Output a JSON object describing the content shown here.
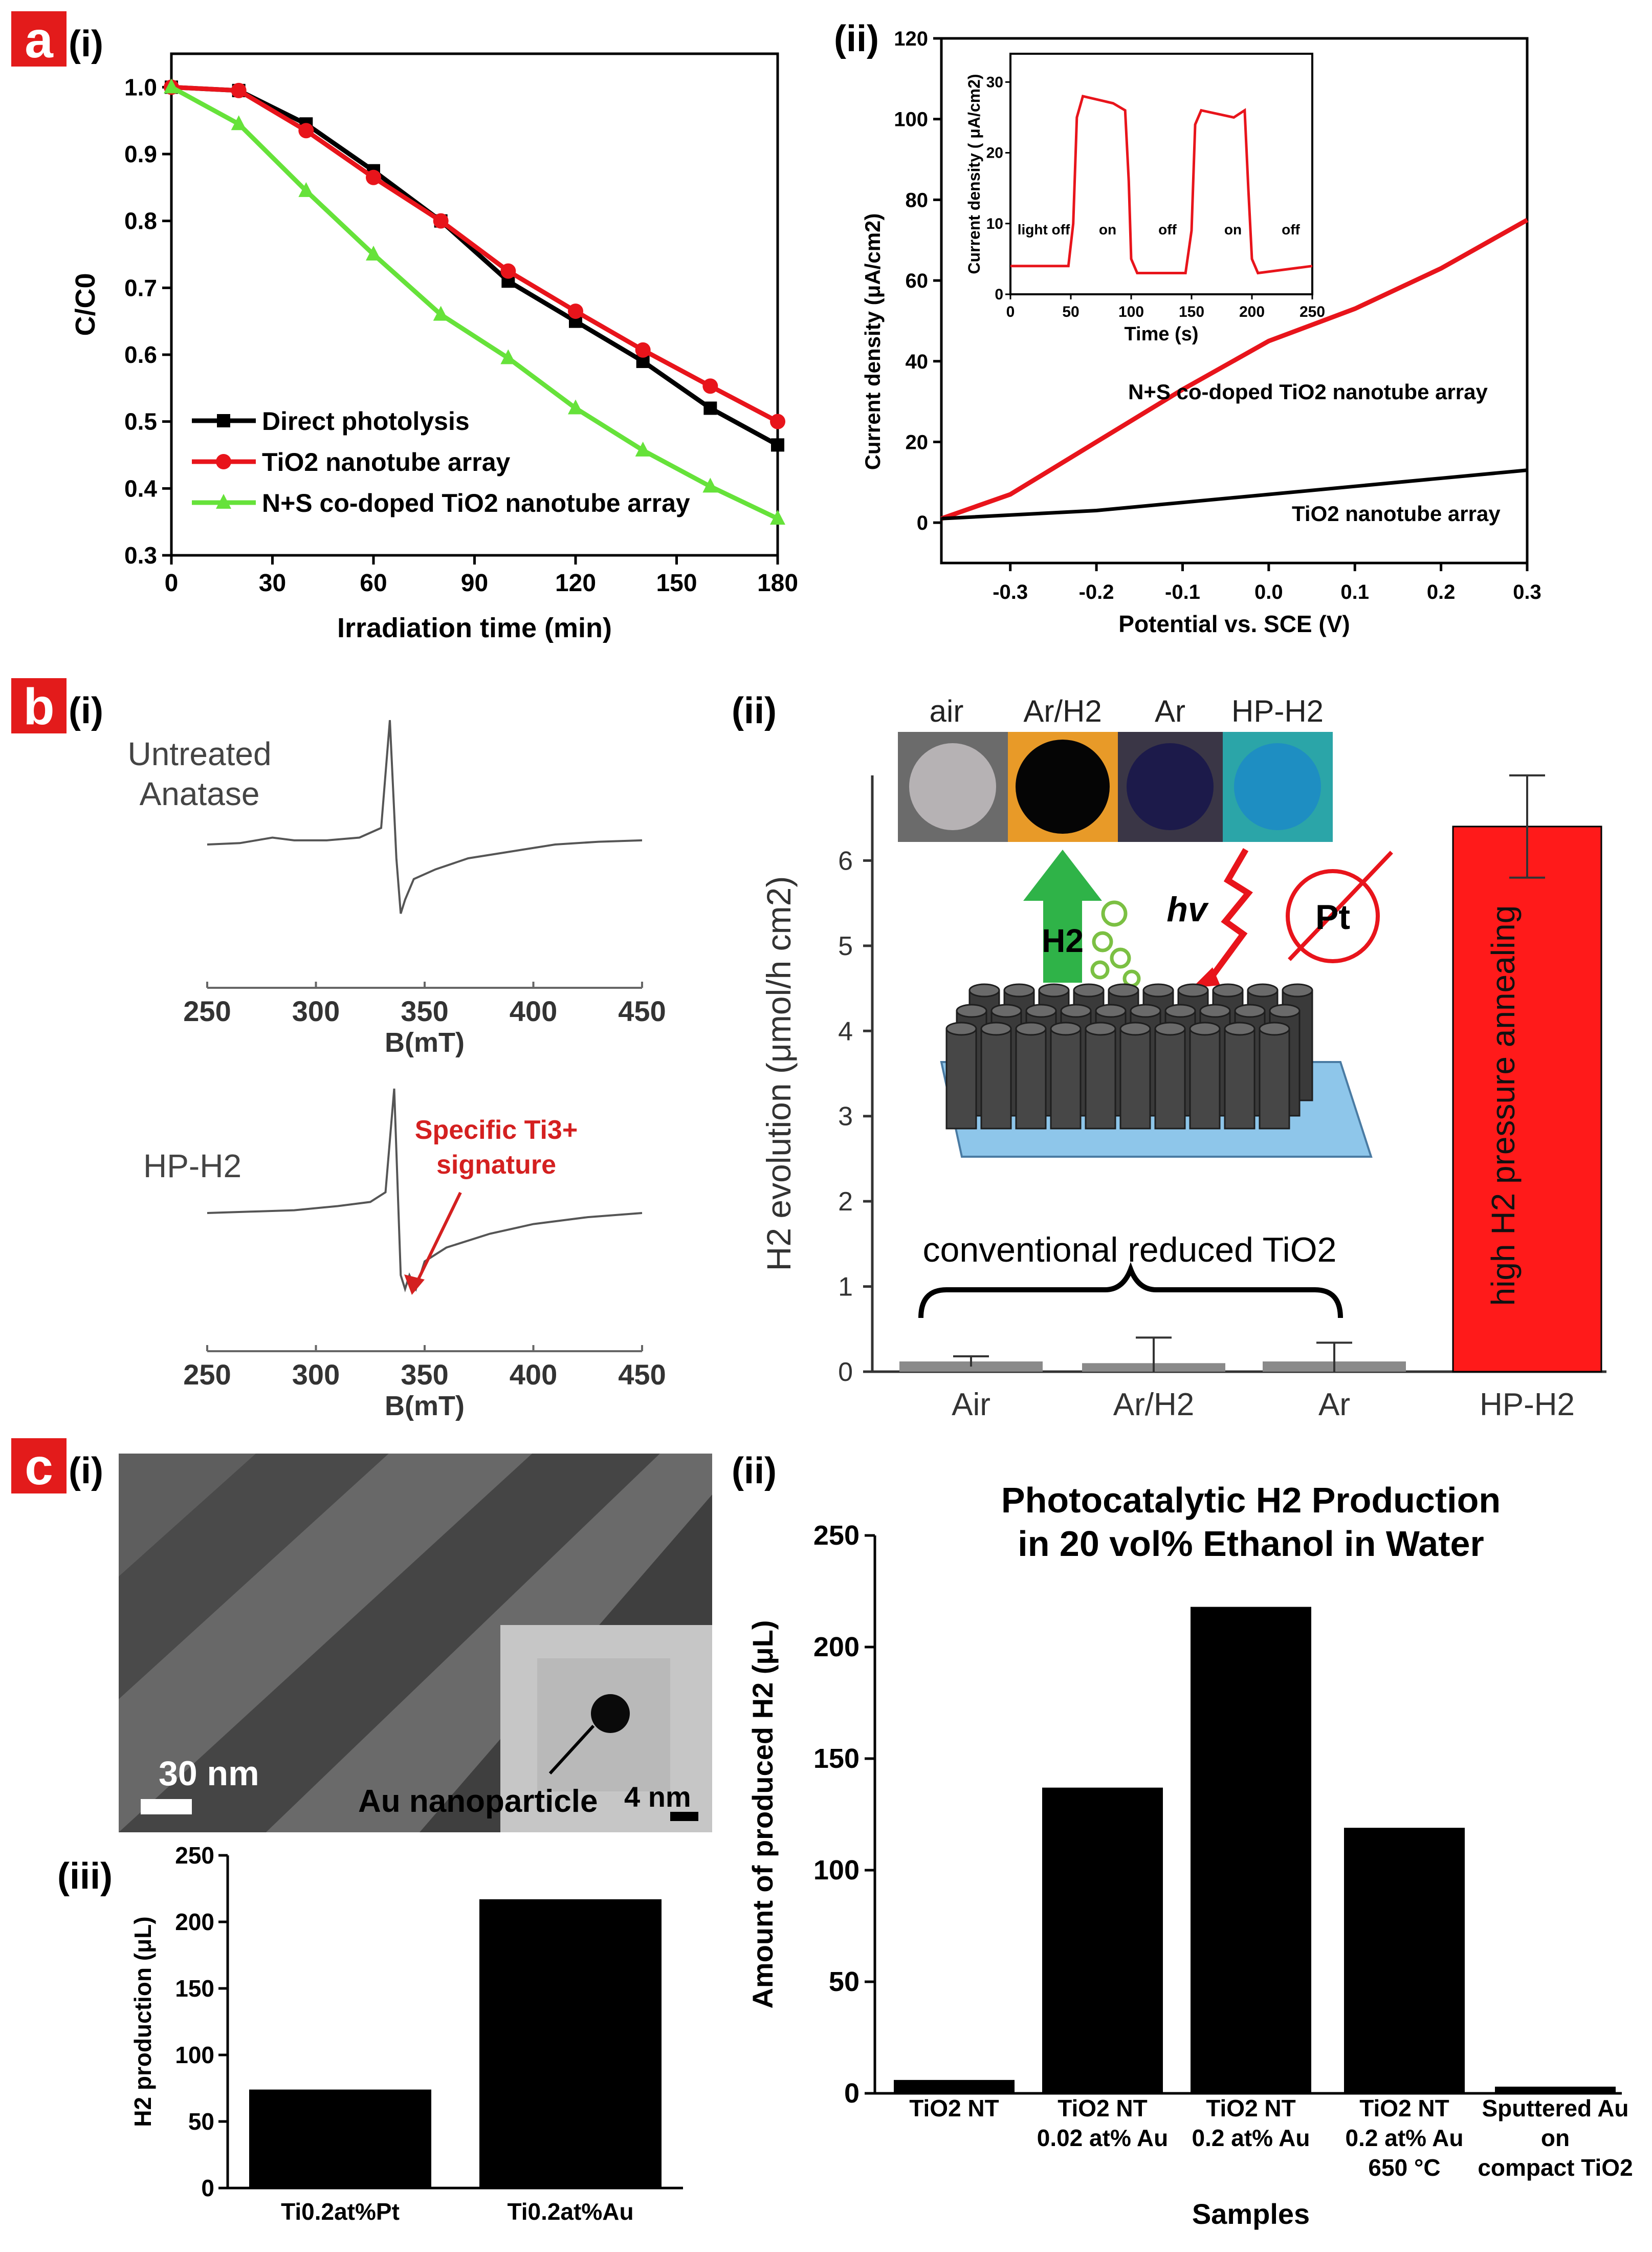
{
  "panels": {
    "a": {
      "letter": "a",
      "sub_i": "(i)",
      "sub_ii": "(ii)"
    },
    "b": {
      "letter": "b",
      "sub_i": "(i)",
      "sub_ii": "(ii)"
    },
    "c": {
      "letter": "c",
      "sub_i": "(i)",
      "sub_ii": "(ii)",
      "sub_iii": "(iii)"
    }
  },
  "colors": {
    "panel_letter_bg": "#e31b1b",
    "black": "#000000",
    "red": "#e8141b",
    "green": "#66e23a",
    "bar_red": "#ff1a1a",
    "gray": "#8a8a8a"
  },
  "tem": {
    "scale_main": "30 nm",
    "scale_inset": "4 nm",
    "label": "Au nanoparticle"
  },
  "schematic": {
    "photos": [
      "air",
      "Ar/H2",
      "Ar",
      "HP-H2"
    ],
    "h2_label": "H2",
    "hv_label": "hv",
    "pt_label": "Pt",
    "brace_label": "conventional reduced TiO2",
    "bar_label": "high H2 pressure annealing"
  },
  "chart_data": [
    {
      "id": "a-i",
      "type": "line",
      "xlabel": "Irradiation time (min)",
      "ylabel": "C/C0",
      "xlim": [
        0,
        180
      ],
      "ylim": [
        0.3,
        1.05
      ],
      "xticks": [
        "0",
        "30",
        "60",
        "90",
        "120",
        "150",
        "180"
      ],
      "yticks": [
        "0.3",
        "0.4",
        "0.5",
        "0.6",
        "0.7",
        "0.8",
        "0.9",
        "1.0"
      ],
      "x": [
        0,
        20,
        40,
        60,
        80,
        100,
        120,
        140,
        160,
        180
      ],
      "series": [
        {
          "name": "Direct photolysis",
          "color": "#000000",
          "marker": "square",
          "values": [
            1.0,
            0.995,
            0.945,
            0.875,
            0.8,
            0.71,
            0.65,
            0.59,
            0.52,
            0.465
          ]
        },
        {
          "name": "TiO2 nanotube array",
          "color": "#e8141b",
          "marker": "circle",
          "values": [
            1.0,
            0.995,
            0.935,
            0.865,
            0.8,
            0.725,
            0.665,
            0.607,
            0.553,
            0.5
          ]
        },
        {
          "name": "N+S co-doped TiO2 nanotube array",
          "color": "#66e23a",
          "marker": "triangle",
          "values": [
            1.0,
            0.945,
            0.845,
            0.75,
            0.66,
            0.595,
            0.52,
            0.457,
            0.403,
            0.355
          ]
        }
      ],
      "legend": "bottom-left"
    },
    {
      "id": "a-ii",
      "type": "line",
      "xlabel": "Potential  vs. SCE (V)",
      "ylabel": "Current density (μA/cm2)",
      "xlim": [
        -0.38,
        0.3
      ],
      "ylim": [
        -10,
        120
      ],
      "xticks": [
        "-0.3",
        "-0.2",
        "-0.1",
        "0.0",
        "0.1",
        "0.2",
        "0.3"
      ],
      "yticks": [
        "0",
        "20",
        "40",
        "60",
        "80",
        "100",
        "120"
      ],
      "series": [
        {
          "name": "N+S co-doped TiO2 nanotube array",
          "color": "#e8141b",
          "x": [
            -0.38,
            -0.3,
            -0.2,
            -0.1,
            0.0,
            0.05,
            0.1,
            0.2,
            0.3
          ],
          "values": [
            1,
            7,
            20,
            33,
            45,
            49,
            53,
            63,
            75
          ]
        },
        {
          "name": "TiO2 nanotube array",
          "color": "#000000",
          "x": [
            -0.38,
            -0.2,
            0.0,
            0.1,
            0.2,
            0.3
          ],
          "values": [
            1,
            3,
            7,
            9,
            11,
            13
          ]
        }
      ],
      "inset": {
        "xlabel": "Time (s)",
        "ylabel": "Current density ( μA/cm2)",
        "xlim": [
          0,
          250
        ],
        "ylim": [
          0,
          34
        ],
        "xticks": [
          "0",
          "50",
          "100",
          "150",
          "200",
          "250"
        ],
        "yticks": [
          "0",
          "10",
          "20",
          "30"
        ],
        "x": [
          0,
          48,
          52,
          55,
          60,
          85,
          95,
          98,
          100,
          105,
          145,
          150,
          153,
          158,
          185,
          194,
          197,
          200,
          205,
          250
        ],
        "values": [
          4,
          4,
          10,
          25,
          28,
          27,
          26,
          16,
          5,
          3,
          3,
          9,
          24,
          26,
          25,
          26,
          15,
          5,
          3,
          4
        ],
        "annotations": [
          "light off",
          "on",
          "off",
          "on",
          "off"
        ]
      }
    },
    {
      "id": "b-i",
      "type": "line",
      "xlabel": "B(mT)",
      "xlim": [
        250,
        450
      ],
      "xticks": [
        "250",
        "300",
        "350",
        "400",
        "450"
      ],
      "series": [
        {
          "name": "Untreated Anatase",
          "x": [
            250,
            265,
            280,
            290,
            305,
            320,
            330,
            334,
            337,
            339,
            341,
            345,
            355,
            370,
            390,
            410,
            430,
            450
          ],
          "values": [
            0.0,
            0.01,
            0.05,
            0.03,
            0.03,
            0.05,
            0.12,
            0.9,
            -0.1,
            -0.5,
            -0.4,
            -0.25,
            -0.18,
            -0.1,
            -0.05,
            0.0,
            0.02,
            0.03
          ]
        },
        {
          "name": "HP-H2",
          "x": [
            250,
            270,
            290,
            310,
            325,
            332,
            336,
            339,
            341,
            343,
            346,
            350,
            360,
            380,
            400,
            425,
            450
          ],
          "values": [
            0.0,
            0.01,
            0.02,
            0.05,
            0.08,
            0.15,
            0.9,
            -0.45,
            -0.55,
            -0.45,
            -0.55,
            -0.35,
            -0.25,
            -0.15,
            -0.08,
            -0.03,
            0.0
          ]
        }
      ],
      "annotation": "Specific Ti3+ signature"
    },
    {
      "id": "b-ii",
      "type": "bar",
      "ylabel": "H2 evolution (μmol/h cm2)",
      "ylim": [
        0,
        7
      ],
      "yticks": [
        "0",
        "1",
        "2",
        "3",
        "4",
        "5",
        "6"
      ],
      "categories": [
        "Air",
        "Ar/H2",
        "Ar",
        "HP-H2"
      ],
      "values": [
        0.12,
        0.1,
        0.12,
        6.4
      ],
      "errors": [
        0.06,
        0.3,
        0.22,
        0.6
      ]
    },
    {
      "id": "c-ii",
      "type": "bar",
      "title": "Photocatalytic H2 Production\nin 20 vol% Ethanol in Water",
      "xlabel": "Samples",
      "ylabel": "Amount of produced H2 (μL)",
      "ylim": [
        0,
        250
      ],
      "yticks": [
        "0",
        "50",
        "100",
        "150",
        "200",
        "250"
      ],
      "categories": [
        "TiO2 NT",
        "TiO2 NT\n0.02 at% Au",
        "TiO2 NT\n0.2 at% Au",
        "TiO2 NT\n0.2 at% Au\n650 °C",
        "Sputtered Au\non\ncompact TiO2"
      ],
      "values": [
        6,
        137,
        218,
        119,
        3
      ]
    },
    {
      "id": "c-iii",
      "type": "bar",
      "ylabel": "H2 production (μL)",
      "ylim": [
        0,
        250
      ],
      "yticks": [
        "0",
        "50",
        "100",
        "150",
        "200",
        "250"
      ],
      "categories": [
        "Ti0.2at%Pt",
        "Ti0.2at%Au"
      ],
      "values": [
        74,
        217
      ]
    }
  ]
}
